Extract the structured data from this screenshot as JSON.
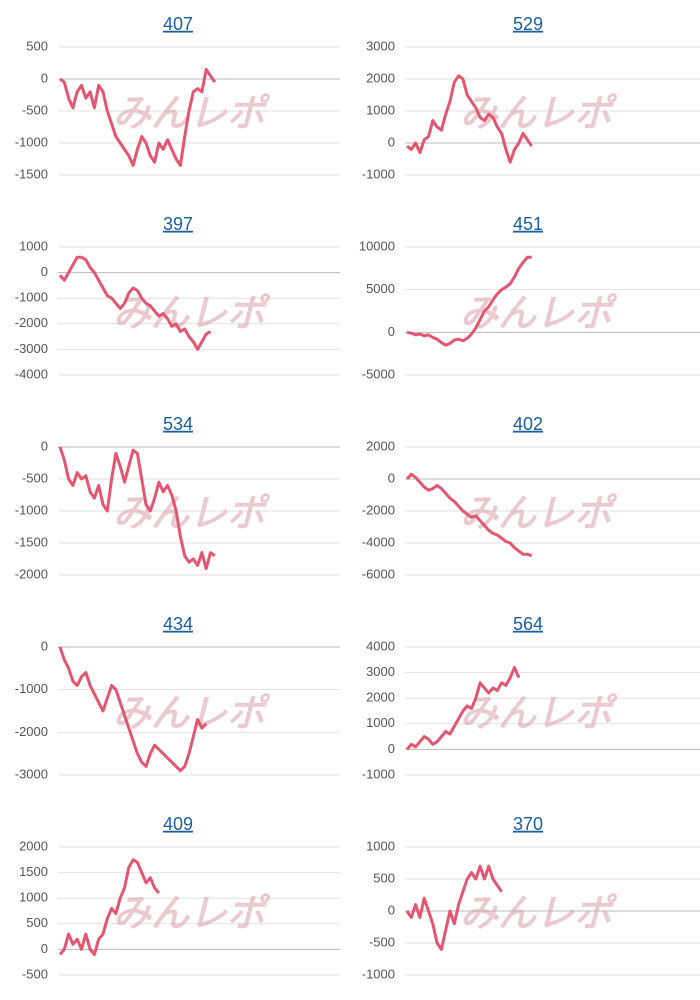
{
  "watermark": "みんレポ",
  "chart_data": [
    {
      "type": "line",
      "title": "407",
      "color": "#e4566f",
      "ylim": [
        -1500,
        500
      ],
      "yticks": [
        500,
        0,
        -500,
        -1000,
        -1500
      ],
      "grid": true,
      "values": [
        0,
        -50,
        -300,
        -450,
        -200,
        -100,
        -300,
        -200,
        -450,
        -100,
        -200,
        -500,
        -700,
        -900,
        -1000,
        -1100,
        -1200,
        -1350,
        -1100,
        -900,
        -1000,
        -1200,
        -1300,
        -1000,
        -1100,
        -950,
        -1100,
        -1250,
        -1350,
        -900,
        -500,
        -200,
        -150,
        -200,
        150,
        50,
        -50
      ]
    },
    {
      "type": "line",
      "title": "529",
      "color": "#e4566f",
      "ylim": [
        -1000,
        3000
      ],
      "yticks": [
        3000,
        2000,
        1000,
        0,
        -1000
      ],
      "grid": true,
      "values": [
        -100,
        -200,
        0,
        -300,
        100,
        200,
        700,
        500,
        400,
        900,
        1300,
        1900,
        2100,
        2000,
        1500,
        1300,
        1100,
        800,
        700,
        900,
        800,
        500,
        300,
        -200,
        -600,
        -200,
        0,
        300,
        100,
        -100
      ]
    },
    {
      "type": "line",
      "title": "397",
      "color": "#e4566f",
      "ylim": [
        -4000,
        1000
      ],
      "yticks": [
        1000,
        0,
        -1000,
        -2000,
        -3000,
        -4000
      ],
      "grid": true,
      "values": [
        -100,
        -300,
        0,
        300,
        600,
        600,
        500,
        200,
        0,
        -300,
        -600,
        -900,
        -1000,
        -1200,
        -1400,
        -1200,
        -800,
        -600,
        -700,
        -1000,
        -1200,
        -1300,
        -1500,
        -1700,
        -1600,
        -1800,
        -2100,
        -2000,
        -2300,
        -2200,
        -2500,
        -2700,
        -3000,
        -2700,
        -2400,
        -2300
      ]
    },
    {
      "type": "line",
      "title": "451",
      "color": "#e4566f",
      "ylim": [
        -5000,
        10000
      ],
      "yticks": [
        10000,
        5000,
        0,
        -5000
      ],
      "grid": true,
      "values": [
        0,
        -100,
        -300,
        -200,
        -400,
        -300,
        -600,
        -800,
        -1200,
        -1500,
        -1300,
        -900,
        -800,
        -1000,
        -700,
        -200,
        500,
        1500,
        2500,
        3000,
        3800,
        4500,
        5000,
        5300,
        5700,
        6500,
        7500,
        8200,
        8800,
        8800
      ]
    },
    {
      "type": "line",
      "title": "534",
      "color": "#e4566f",
      "ylim": [
        -2000,
        0
      ],
      "yticks": [
        0,
        -500,
        -1000,
        -1500,
        -2000
      ],
      "grid": true,
      "values": [
        0,
        -200,
        -500,
        -600,
        -400,
        -500,
        -450,
        -700,
        -800,
        -600,
        -900,
        -1000,
        -500,
        -100,
        -300,
        -550,
        -300,
        -50,
        -100,
        -500,
        -900,
        -1000,
        -800,
        -550,
        -700,
        -600,
        -750,
        -1000,
        -1400,
        -1700,
        -1800,
        -1750,
        -1850,
        -1650,
        -1900,
        -1650,
        -1700
      ]
    },
    {
      "type": "line",
      "title": "402",
      "color": "#e4566f",
      "ylim": [
        -6000,
        2000
      ],
      "yticks": [
        2000,
        0,
        -2000,
        -4000,
        -6000
      ],
      "grid": true,
      "values": [
        0,
        300,
        100,
        -200,
        -500,
        -700,
        -600,
        -400,
        -600,
        -900,
        -1200,
        -1400,
        -1700,
        -2000,
        -2200,
        -2400,
        -2300,
        -2600,
        -2900,
        -3200,
        -3400,
        -3500,
        -3700,
        -3900,
        -4000,
        -4300,
        -4500,
        -4700,
        -4700,
        -4800
      ]
    },
    {
      "type": "line",
      "title": "434",
      "color": "#e4566f",
      "ylim": [
        -3000,
        0
      ],
      "yticks": [
        0,
        -1000,
        -2000,
        -3000
      ],
      "grid": true,
      "values": [
        0,
        -300,
        -500,
        -800,
        -900,
        -700,
        -600,
        -900,
        -1100,
        -1300,
        -1500,
        -1200,
        -900,
        -1000,
        -1300,
        -1600,
        -1900,
        -2200,
        -2500,
        -2700,
        -2800,
        -2500,
        -2300,
        -2400,
        -2500,
        -2600,
        -2700,
        -2800,
        -2900,
        -2800,
        -2500,
        -2100,
        -1700,
        -1900,
        -1800
      ]
    },
    {
      "type": "line",
      "title": "564",
      "color": "#e4566f",
      "ylim": [
        -1000,
        4000
      ],
      "yticks": [
        4000,
        3000,
        2000,
        1000,
        0,
        -1000
      ],
      "grid": true,
      "values": [
        0,
        200,
        100,
        300,
        500,
        400,
        200,
        300,
        500,
        700,
        600,
        900,
        1200,
        1500,
        1700,
        1600,
        2000,
        2600,
        2400,
        2200,
        2400,
        2300,
        2600,
        2500,
        2800,
        3200,
        2800
      ]
    },
    {
      "type": "line",
      "title": "409",
      "color": "#e4566f",
      "ylim": [
        -500,
        2000
      ],
      "yticks": [
        2000,
        1500,
        1000,
        500,
        0,
        -500
      ],
      "grid": true,
      "values": [
        -100,
        0,
        300,
        100,
        200,
        0,
        300,
        0,
        -100,
        200,
        300,
        600,
        800,
        700,
        1000,
        1200,
        1600,
        1750,
        1700,
        1500,
        1300,
        1400,
        1200,
        1100
      ]
    },
    {
      "type": "line",
      "title": "370",
      "color": "#e4566f",
      "ylim": [
        -1000,
        1000
      ],
      "yticks": [
        1000,
        500,
        0,
        -500,
        -1000
      ],
      "grid": true,
      "values": [
        0,
        -100,
        100,
        -100,
        200,
        0,
        -200,
        -500,
        -600,
        -300,
        0,
        -200,
        100,
        300,
        500,
        600,
        500,
        700,
        500,
        700,
        500,
        400,
        300
      ]
    }
  ]
}
